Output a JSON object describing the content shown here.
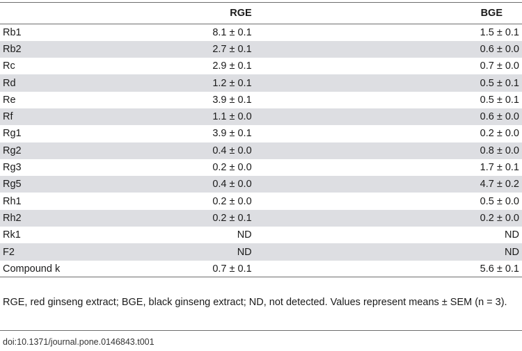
{
  "table": {
    "headers": {
      "name": "",
      "rge": "RGE",
      "bge": "BGE"
    },
    "rows": [
      {
        "name": "Rb1",
        "rge": "8.1 ± 0.1",
        "bge": "1.5 ± 0.1"
      },
      {
        "name": "Rb2",
        "rge": "2.7 ± 0.1",
        "bge": "0.6 ± 0.0"
      },
      {
        "name": "Rc",
        "rge": "2.9 ± 0.1",
        "bge": "0.7 ± 0.0"
      },
      {
        "name": "Rd",
        "rge": "1.2 ± 0.1",
        "bge": "0.5 ± 0.1"
      },
      {
        "name": "Re",
        "rge": "3.9 ± 0.1",
        "bge": "0.5 ± 0.1"
      },
      {
        "name": "Rf",
        "rge": "1.1 ± 0.0",
        "bge": "0.6 ± 0.0"
      },
      {
        "name": "Rg1",
        "rge": "3.9 ± 0.1",
        "bge": "0.2 ± 0.0"
      },
      {
        "name": "Rg2",
        "rge": "0.4 ± 0.0",
        "bge": "0.8 ± 0.0"
      },
      {
        "name": "Rg3",
        "rge": "0.2 ± 0.0",
        "bge": "1.7 ± 0.1"
      },
      {
        "name": "Rg5",
        "rge": "0.4 ± 0.0",
        "bge": "4.7 ± 0.2"
      },
      {
        "name": "Rh1",
        "rge": "0.2 ± 0.0",
        "bge": "0.5 ± 0.0"
      },
      {
        "name": "Rh2",
        "rge": "0.2 ± 0.1",
        "bge": "0.2 ± 0.0"
      },
      {
        "name": "Rk1",
        "rge": "ND",
        "bge": "ND"
      },
      {
        "name": "F2",
        "rge": "ND",
        "bge": "ND"
      },
      {
        "name": "Compound k",
        "rge": "0.7 ± 0.1",
        "bge": "5.6 ± 0.1"
      }
    ]
  },
  "footnote": "RGE, red ginseng extract; BGE, black ginseng extract; ND, not detected. Values represent means ± SEM (n = 3).",
  "doi": "doi:10.1371/journal.pone.0146843.t001"
}
